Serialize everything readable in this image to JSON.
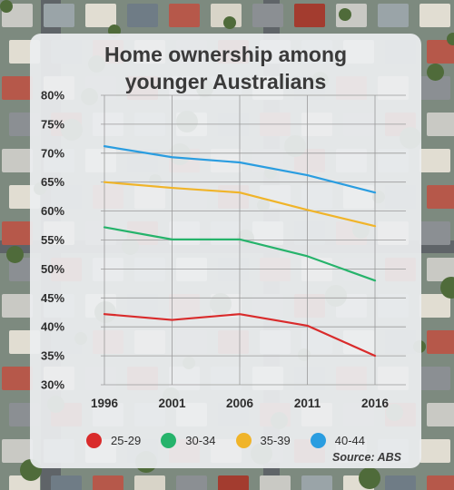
{
  "chart_data": {
    "type": "line",
    "title": "Home ownership among younger Australians",
    "title_lines": [
      "Home ownership among",
      "younger Australians"
    ],
    "categories": [
      "1996",
      "2001",
      "2006",
      "2011",
      "2016"
    ],
    "ylim": [
      30,
      80
    ],
    "yticks": [
      "30%",
      "35%",
      "40%",
      "45%",
      "50%",
      "55%",
      "60%",
      "65%",
      "70%",
      "75%",
      "80%"
    ],
    "grid": true,
    "legend_position": "bottom",
    "series": [
      {
        "name": "25-29",
        "color": "#d92b2b",
        "values": [
          42.2,
          41.2,
          42.2,
          40.2,
          35.0
        ]
      },
      {
        "name": "30-34",
        "color": "#26b36b",
        "values": [
          57.2,
          55.1,
          55.1,
          52.2,
          48.0
        ]
      },
      {
        "name": "35-39",
        "color": "#f0b429",
        "values": [
          65.0,
          64.0,
          63.2,
          60.2,
          57.4
        ]
      },
      {
        "name": "40-44",
        "color": "#2a9de0",
        "values": [
          71.2,
          69.3,
          68.4,
          66.2,
          63.2
        ]
      }
    ],
    "source": "Source: ABS"
  }
}
